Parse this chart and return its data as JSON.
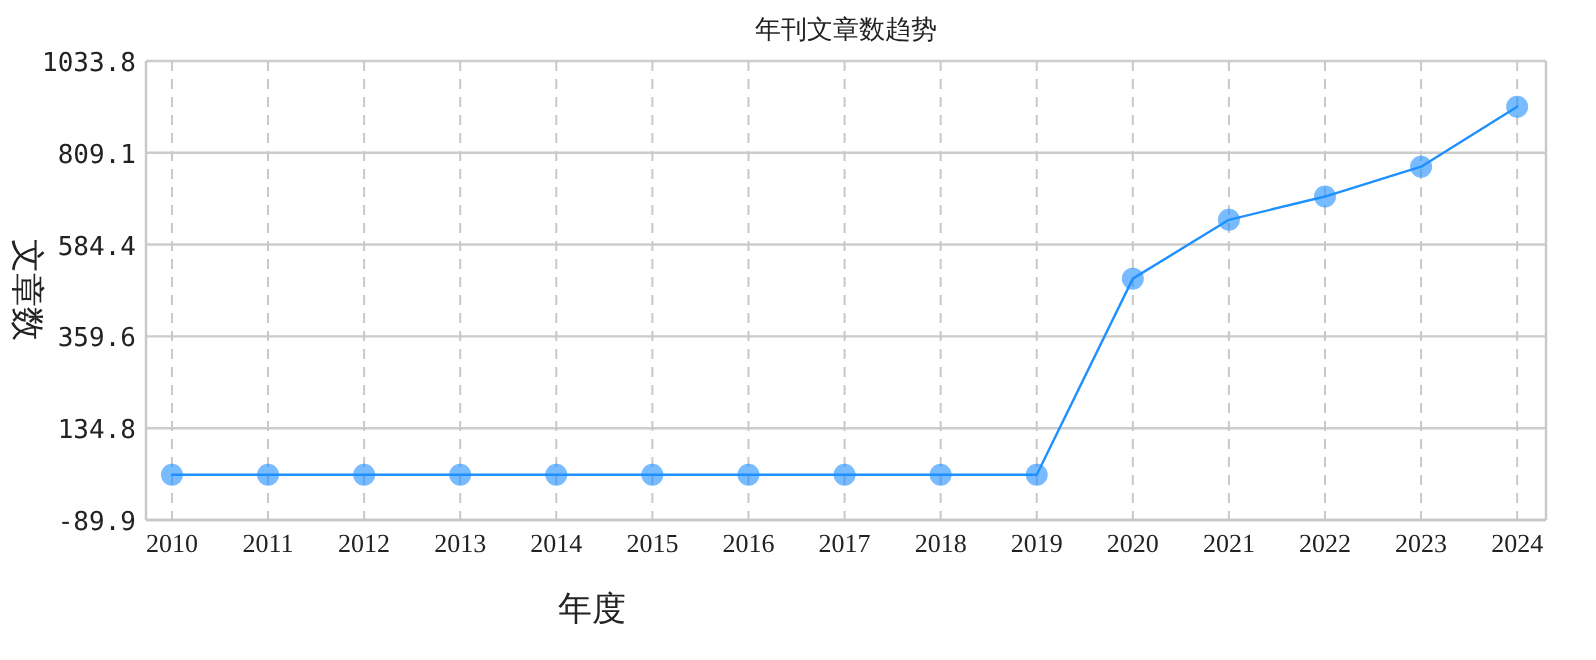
{
  "chart_data": {
    "type": "line",
    "title": "年刊文章数趋势",
    "xlabel": "年度",
    "ylabel": "文章数",
    "categories": [
      "2010",
      "2011",
      "2012",
      "2013",
      "2014",
      "2015",
      "2016",
      "2017",
      "2018",
      "2019",
      "2020",
      "2021",
      "2022",
      "2023",
      "2024"
    ],
    "series": [
      {
        "color": "#1e90ff",
        "values": [
          21,
          21,
          21,
          21,
          21,
          21,
          21,
          21,
          21,
          21,
          501,
          645,
          702,
          775,
          922
        ]
      }
    ],
    "ylim": [
      -89.9,
      1033.8
    ],
    "yticks": [
      -89.9,
      134.8,
      359.6,
      584.4,
      809.1,
      1033.8
    ],
    "grid": true,
    "marker": "circle",
    "line_style": "solid"
  }
}
